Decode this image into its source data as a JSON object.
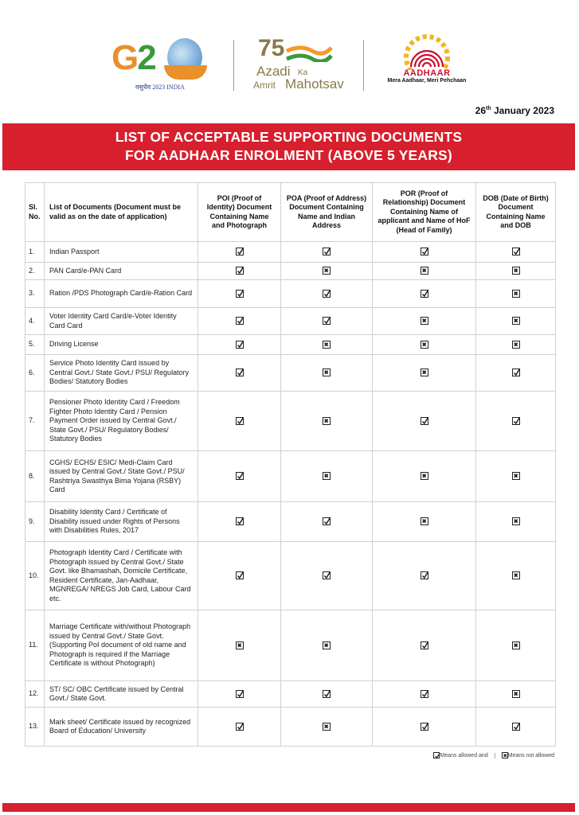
{
  "logos": {
    "g20": {
      "text_g": "G",
      "text_2": "2",
      "subtitle": "वसुधैव 2023 INDIA"
    },
    "akam": {
      "number": "75",
      "line1": "Azadi",
      "ka": "Ka",
      "line2a": "Amrit",
      "line2b": "Mahotsav"
    },
    "aadhaar": {
      "name": "AADHAAR",
      "tagline": "Mera Aadhaar, Meri Pehchaan"
    }
  },
  "date": {
    "day": "26",
    "suffix": "th",
    "rest": " January 2023"
  },
  "banner": {
    "line1": "LIST OF ACCEPTABLE SUPPORTING DOCUMENTS",
    "line2": "FOR AADHAAR ENROLMENT (ABOVE 5 YEARS)"
  },
  "colors": {
    "accent_red": "#d71f2d"
  },
  "table": {
    "headers": [
      "Sl. No.",
      "List of Documents (Document must be valid as on the date of application)",
      "POI (Proof of Identity) Document Containing Name and Photograph",
      "POA (Proof of Address) Document Containing Name and Indian Address",
      "POR (Proof of Relationship) Document Containing Name of applicant and Name of HoF (Head of Family)",
      "DOB (Date of Birth) Document Containing Name and DOB"
    ],
    "rows": [
      {
        "sl": "1.",
        "doc": "Indian Passport",
        "marks": [
          true,
          true,
          true,
          true
        ]
      },
      {
        "sl": "2.",
        "doc": "PAN Card/e-PAN Card",
        "marks": [
          true,
          false,
          false,
          false
        ]
      },
      {
        "sl": "3.",
        "doc": "Ration /PDS Photograph Card/e-Ration Card",
        "marks": [
          true,
          true,
          true,
          false
        ]
      },
      {
        "sl": "4.",
        "doc": "Voter Identity Card Card/e-Voter Identity Card Card",
        "marks": [
          true,
          true,
          false,
          false
        ]
      },
      {
        "sl": "5.",
        "doc": "Driving License",
        "marks": [
          true,
          false,
          false,
          false
        ]
      },
      {
        "sl": "6.",
        "doc": "Service Photo Identity Card issued by Central Govt./ State Govt./ PSU/ Regulatory Bodies/ Statutory Bodies",
        "marks": [
          true,
          false,
          false,
          true
        ]
      },
      {
        "sl": "7.",
        "doc": "Pensioner Photo Identity Card / Freedom Fighter Photo Identity Card / Pension Payment Order issued by Central Govt./ State Govt./ PSU/ Regulatory Bodies/ Statutory Bodies",
        "marks": [
          true,
          false,
          true,
          true
        ]
      },
      {
        "sl": "8.",
        "doc": "CGHS/ ECHS/ ESIC/ Medi-Claim Card issued by Central Govt./ State Govt./ PSU/ Rashtriya Swasthya Bima Yojana (RSBY) Card",
        "marks": [
          true,
          false,
          false,
          false
        ]
      },
      {
        "sl": "9.",
        "doc": "Disability Identity Card / Certificate of Disability issued under Rights of Persons with Disabilities Rules, 2017",
        "marks": [
          true,
          true,
          false,
          false
        ]
      },
      {
        "sl": "10.",
        "doc": "Photograph Identity Card / Certificate with Photograph issued by Central Govt./ State Govt. like Bhamashah, Domicile Certificate, Resident Certificate, Jan-Aadhaar, MGNREGA/ NREGS Job Card, Labour Card etc.",
        "marks": [
          true,
          true,
          true,
          false
        ]
      },
      {
        "sl": "11.",
        "doc": "Marriage Certificate with/without Photograph issued by Central Govt./ State Govt. (Supporting PoI document of old name and Photograph is required if the Marriage Certificate is without Photograph)",
        "marks": [
          false,
          false,
          true,
          false
        ]
      },
      {
        "sl": "12.",
        "doc": "ST/ SC/ OBC Certificate issued by Central Govt./ State Govt.",
        "marks": [
          true,
          true,
          true,
          false
        ]
      },
      {
        "sl": "13.",
        "doc": "Mark sheet/ Certificate issued by recognized Board of Education/ University",
        "marks": [
          true,
          false,
          true,
          true
        ]
      }
    ]
  },
  "legend": {
    "allowed": "Means allowed and",
    "not_allowed": "Means not allowed"
  }
}
